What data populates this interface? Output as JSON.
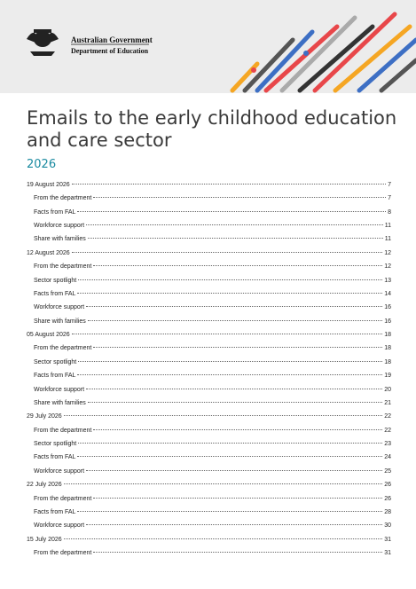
{
  "header": {
    "government": "Australian Government",
    "department": "Department of Education"
  },
  "title": "Emails to the early childhood education and care sector",
  "year": "2026",
  "toc": {
    "sections": [
      {
        "date": "19 August 2026",
        "page": 7,
        "items": [
          {
            "label": "From the department",
            "page": 7
          },
          {
            "label": "Facts from FAL",
            "page": 8
          },
          {
            "label": "Workforce support",
            "page": 11
          },
          {
            "label": "Share with families",
            "page": 11
          }
        ]
      },
      {
        "date": "12 August 2026",
        "page": 12,
        "items": [
          {
            "label": "From the department",
            "page": 12
          },
          {
            "label": "Sector spotlight",
            "page": 13
          },
          {
            "label": "Facts from FAL",
            "page": 14
          },
          {
            "label": "Workforce support",
            "page": 16
          },
          {
            "label": "Share with families",
            "page": 16
          }
        ]
      },
      {
        "date": "05 August 2026",
        "page": 18,
        "items": [
          {
            "label": "From the department",
            "page": 18
          },
          {
            "label": "Sector spotlight",
            "page": 18
          },
          {
            "label": "Facts from FAL",
            "page": 19
          },
          {
            "label": "Workforce support",
            "page": 20
          },
          {
            "label": "Share with families",
            "page": 21
          }
        ]
      },
      {
        "date": "29 July 2026",
        "page": 22,
        "items": [
          {
            "label": "From the department",
            "page": 22
          },
          {
            "label": "Sector spotlight",
            "page": 23
          },
          {
            "label": "Facts from FAL",
            "page": 24
          },
          {
            "label": "Workforce support",
            "page": 25
          }
        ]
      },
      {
        "date": "22 July 2026",
        "page": 26,
        "items": [
          {
            "label": "From the department",
            "page": 26
          },
          {
            "label": "Facts from FAL",
            "page": 28
          },
          {
            "label": "Workforce support",
            "page": 30
          }
        ]
      },
      {
        "date": "15 July 2026",
        "page": 31,
        "items": [
          {
            "label": "From the department",
            "page": 31
          }
        ]
      }
    ]
  }
}
